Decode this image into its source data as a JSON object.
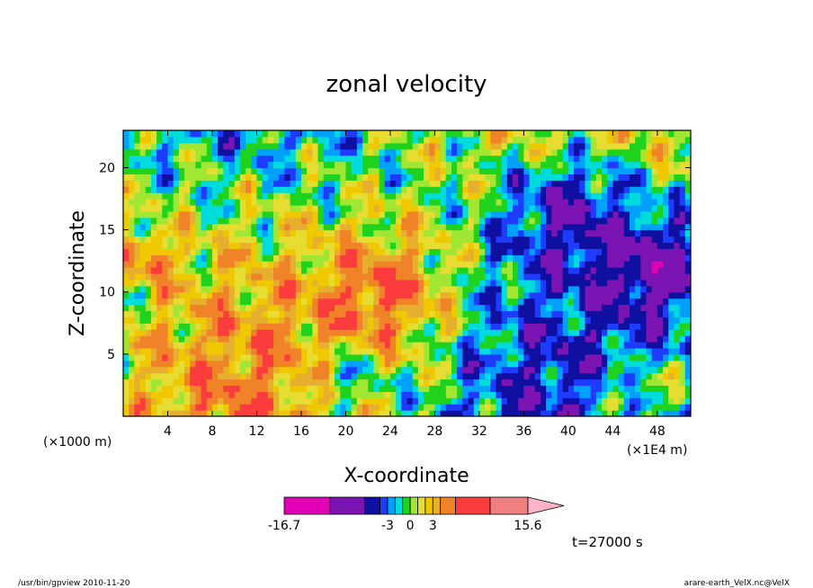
{
  "chart_data": {
    "type": "heatmap",
    "title": "zonal velocity",
    "xlabel": "X-coordinate",
    "ylabel": "Z-coordinate",
    "x_unit_left": "(×1000 m)",
    "x_unit_right": "(×1E4 m)",
    "xlim": [
      0,
      51
    ],
    "ylim": [
      0,
      23
    ],
    "x_ticks": [
      4,
      8,
      12,
      16,
      20,
      24,
      28,
      32,
      36,
      40,
      44,
      48
    ],
    "x_tick_labels": [
      "4",
      "8",
      "12",
      "16",
      "20",
      "24",
      "28",
      "32",
      "36",
      "40",
      "44",
      "48"
    ],
    "y_ticks": [
      5,
      10,
      15,
      20
    ],
    "y_tick_labels": [
      "5",
      "10",
      "15",
      "20"
    ],
    "colorbar": {
      "min": -16.7,
      "max": 15.6,
      "levels": [
        -16.7,
        -10.6,
        -6.0,
        -4.0,
        -3.0,
        -2.0,
        -1.0,
        0.0,
        1.0,
        2.0,
        3.0,
        4.0,
        6.0,
        10.6,
        15.6
      ],
      "colors": [
        "#e100b4",
        "#7c14b4",
        "#0f0fa0",
        "#1e3cff",
        "#00a0ff",
        "#00dcdc",
        "#1ed21e",
        "#a0e632",
        "#e6dc32",
        "#f0c800",
        "#e6af2d",
        "#f08228",
        "#fa3c3c",
        "#f08080",
        "#ffb4c8"
      ],
      "tick_labels": [
        "-16.7",
        "-3",
        "0",
        "3",
        "15.6"
      ]
    },
    "time_label": "t=27000 s",
    "grid": false,
    "legend": "colorbar-bottom"
  },
  "footer": {
    "left": "/usr/bin/gpview   2010-11-20",
    "right": "arare-earth_VelX.nc@VelX"
  }
}
